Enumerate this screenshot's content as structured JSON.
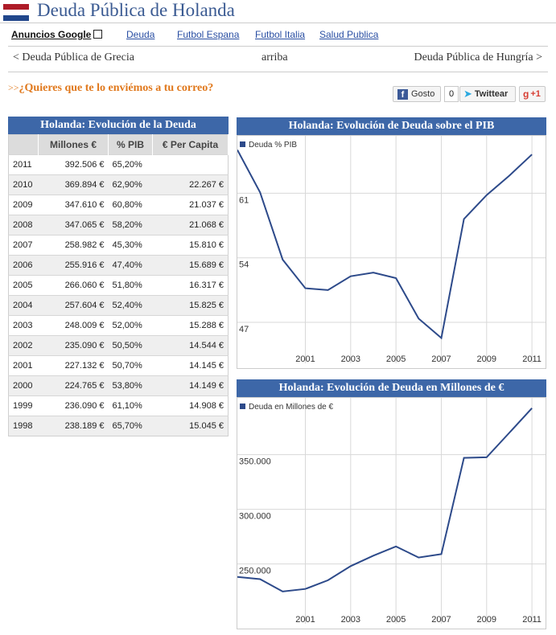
{
  "header": {
    "title": "Deuda Pública de Holanda"
  },
  "nav": {
    "ads_label": "Anuncios Google",
    "links": [
      "Deuda",
      "Futbol Espana",
      "Futbol Italia",
      "Salud Publica"
    ]
  },
  "prevnext": {
    "prev": "< Deuda Pública de Grecia",
    "up": "arriba",
    "next": "Deuda Pública de Hungría >"
  },
  "promo": {
    "arrows": ">>",
    "text": "¿Quieres que te lo enviémos a tu correo?"
  },
  "social": {
    "like_label": "Gosto",
    "like_count": "0",
    "tweet_label": "Twittear",
    "gplus_label": "+1"
  },
  "table": {
    "title": "Holanda: Evolución de la Deuda",
    "headers": [
      "",
      "Millones €",
      "% PIB",
      "€ Per Capita"
    ],
    "rows": [
      [
        "2011",
        "392.506 €",
        "65,20%",
        ""
      ],
      [
        "2010",
        "369.894 €",
        "62,90%",
        "22.267 €"
      ],
      [
        "2009",
        "347.610 €",
        "60,80%",
        "21.037 €"
      ],
      [
        "2008",
        "347.065 €",
        "58,20%",
        "21.068 €"
      ],
      [
        "2007",
        "258.982 €",
        "45,30%",
        "15.810 €"
      ],
      [
        "2006",
        "255.916 €",
        "47,40%",
        "15.689 €"
      ],
      [
        "2005",
        "266.060 €",
        "51,80%",
        "16.317 €"
      ],
      [
        "2004",
        "257.604 €",
        "52,40%",
        "15.825 €"
      ],
      [
        "2003",
        "248.009 €",
        "52,00%",
        "15.288 €"
      ],
      [
        "2002",
        "235.090 €",
        "50,50%",
        "14.544 €"
      ],
      [
        "2001",
        "227.132 €",
        "50,70%",
        "14.145 €"
      ],
      [
        "2000",
        "224.765 €",
        "53,80%",
        "14.149 €"
      ],
      [
        "1999",
        "236.090 €",
        "61,10%",
        "14.908 €"
      ],
      [
        "1998",
        "238.189 €",
        "65,70%",
        "15.045 €"
      ]
    ]
  },
  "colors": {
    "header_blue": "#3d67a8",
    "line_blue": "#2d4a8a",
    "accent_orange": "#e0781c",
    "title_blue": "#3a5a92"
  },
  "chart_data": [
    {
      "type": "line",
      "title": "Holanda: Evolución de Deuda sobre el PIB",
      "legend": "top-left",
      "series": [
        {
          "name": "Deuda % PIB",
          "x": [
            1998,
            1999,
            2000,
            2001,
            2002,
            2003,
            2004,
            2005,
            2006,
            2007,
            2008,
            2009,
            2010,
            2011
          ],
          "values": [
            65.7,
            61.1,
            53.8,
            50.7,
            50.5,
            52.0,
            52.4,
            51.8,
            47.4,
            45.3,
            58.2,
            60.8,
            62.9,
            65.2
          ]
        }
      ],
      "ylim": [
        44.3,
        66.7
      ],
      "xlim": [
        1998,
        2011.6
      ],
      "yticks": [
        47,
        54,
        61
      ],
      "ytick_labels": [
        "47",
        "54",
        "61"
      ],
      "xticks": [
        2001,
        2003,
        2005,
        2007,
        2009,
        2011
      ],
      "xtick_labels": [
        "2001",
        "2003",
        "2005",
        "2007",
        "2009",
        "2011"
      ],
      "grid": true
    },
    {
      "type": "line",
      "title": "Holanda: Evolución de Deuda en Millones de €",
      "legend": "top-left",
      "series": [
        {
          "name": "Deuda en Millones de €",
          "x": [
            1998,
            1999,
            2000,
            2001,
            2002,
            2003,
            2004,
            2005,
            2006,
            2007,
            2008,
            2009,
            2010,
            2011
          ],
          "values": [
            238189,
            236090,
            224765,
            227132,
            235090,
            248009,
            257604,
            266060,
            255916,
            258982,
            347065,
            347610,
            369894,
            392506
          ]
        }
      ],
      "ylim": [
        210000,
        397500
      ],
      "xlim": [
        1998,
        2011.6
      ],
      "yticks": [
        250000,
        300000,
        350000
      ],
      "ytick_labels": [
        "250.000",
        "300.000",
        "350.000"
      ],
      "xticks": [
        2001,
        2003,
        2005,
        2007,
        2009,
        2011
      ],
      "xtick_labels": [
        "2001",
        "2003",
        "2005",
        "2007",
        "2009",
        "2011"
      ],
      "grid": true
    }
  ]
}
